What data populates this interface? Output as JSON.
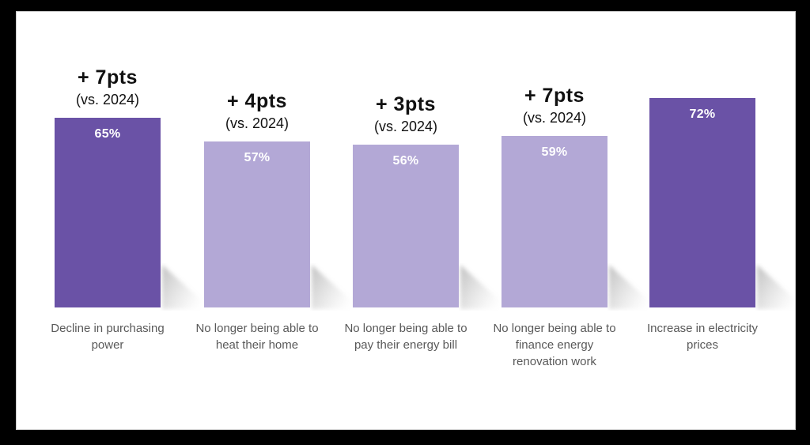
{
  "slide": {
    "frame_background": "#000000",
    "background": "#ffffff"
  },
  "chart_data": {
    "type": "bar",
    "title": "",
    "categories": [
      "Decline in purchasing power",
      "No longer being able to heat their home",
      "No longer being able to pay their energy bill",
      "No longer being able to finance energy renovation work",
      "Increase in electricity prices"
    ],
    "values": [
      65,
      57,
      56,
      59,
      72
    ],
    "unit": "%",
    "value_labels": [
      "65%",
      "57%",
      "56%",
      "59%",
      "72%"
    ],
    "change_annotations": [
      "+ 7pts (vs. 2024)",
      "+ 4pts (vs. 2024)",
      "+ 3pts (vs. 2024)",
      "+ 7pts (vs. 2024)",
      null
    ],
    "ylim": [
      0,
      100
    ],
    "grid": false,
    "legend": false,
    "bar_colors": [
      "#6A52A6",
      "#B3A8D6",
      "#B3A8D6",
      "#B3A8D6",
      "#6A52A6"
    ],
    "label_color": "#595959",
    "value_label_color": "#ffffff"
  },
  "bars": [
    {
      "value_label": "65%",
      "delta": "+ 7pts",
      "vs": "(vs. 2024)",
      "label": "Decline in purchasing\npower",
      "color": "#6A52A6"
    },
    {
      "value_label": "57%",
      "delta": "+ 4pts",
      "vs": "(vs. 2024)",
      "label": "No longer being able to\nheat their home",
      "color": "#B3A8D6"
    },
    {
      "value_label": "56%",
      "delta": "+ 3pts",
      "vs": "(vs. 2024)",
      "label": "No longer being able to\npay their energy bill",
      "color": "#B3A8D6"
    },
    {
      "value_label": "59%",
      "delta": "+ 7pts",
      "vs": "(vs. 2024)",
      "label": "No longer being able to\nfinance energy\nrenovation work",
      "color": "#B3A8D6"
    },
    {
      "value_label": "72%",
      "label": "Increase in electricity\nprices",
      "color": "#6A52A6"
    }
  ]
}
